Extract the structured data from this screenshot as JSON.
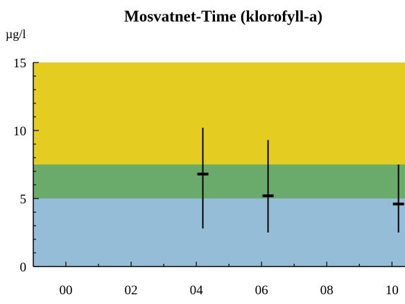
{
  "chart_data": {
    "type": "error_bar",
    "title": "Mosvatnet-Time (klorofyll-a)",
    "ylabel": "µg/l",
    "xlabel": "",
    "ylim": [
      0,
      15
    ],
    "xlim": [
      -1,
      10.4
    ],
    "y_ticks": [
      0,
      5,
      10,
      15
    ],
    "x_ticks": [
      0,
      2,
      4,
      6,
      8,
      10
    ],
    "x_tick_labels": [
      "00",
      "02",
      "04",
      "06",
      "08",
      "10"
    ],
    "grid": false,
    "legend": "none",
    "bands": [
      {
        "from": 0,
        "to": 5,
        "color": "#96bdd8"
      },
      {
        "from": 5,
        "to": 7.5,
        "color": "#6aaa6a"
      },
      {
        "from": 7.5,
        "to": 15,
        "color": "#e4cc20"
      }
    ],
    "points": [
      {
        "x": 4.2,
        "y": 6.8,
        "low": 2.8,
        "high": 10.2
      },
      {
        "x": 6.2,
        "y": 5.2,
        "low": 2.5,
        "high": 9.3
      },
      {
        "x": 10.2,
        "y": 4.6,
        "low": 2.5,
        "high": 7.5
      }
    ]
  }
}
